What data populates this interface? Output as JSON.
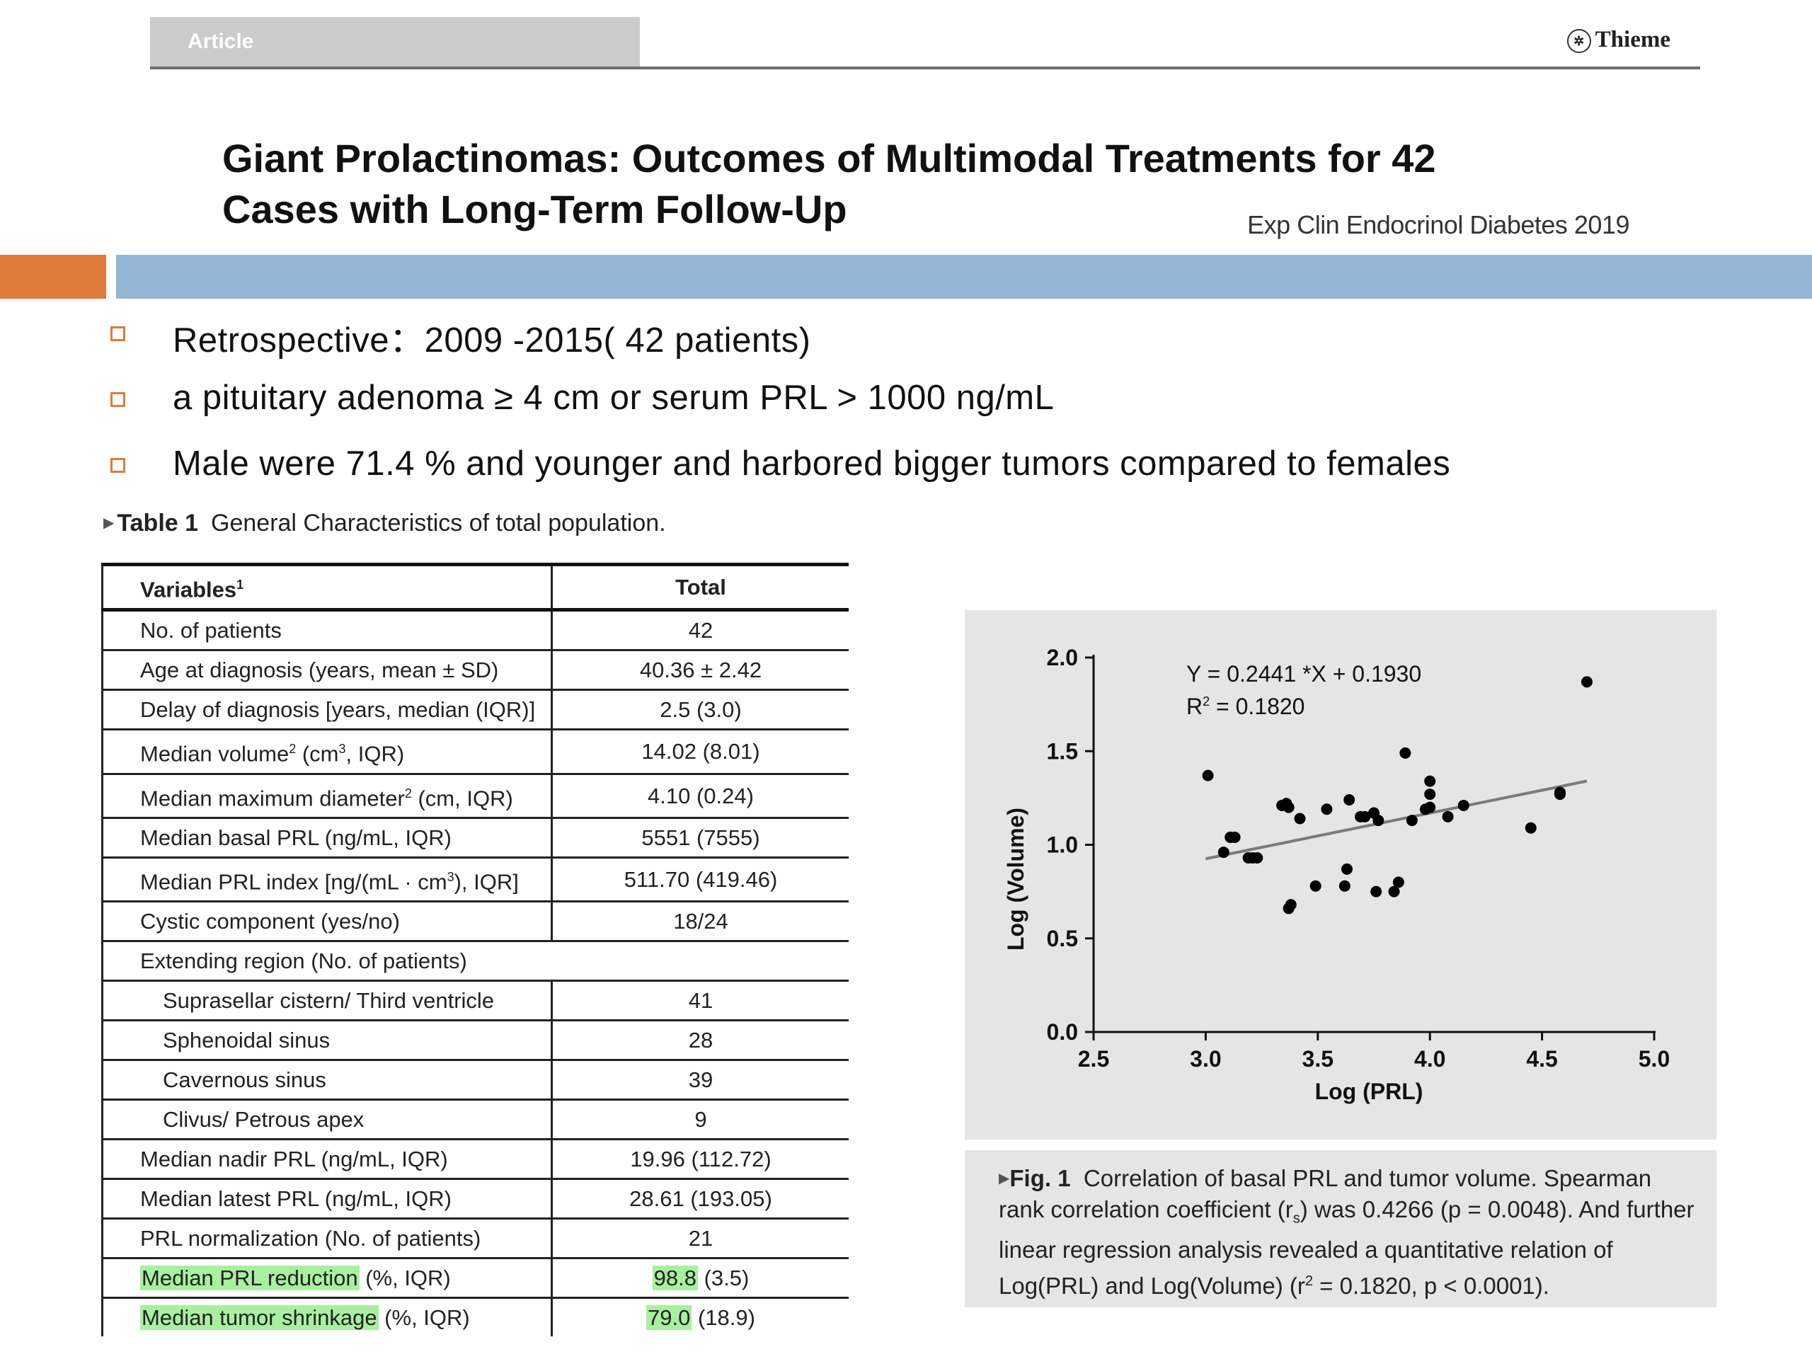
{
  "header": {
    "section_label": "Article",
    "publisher": "Thieme"
  },
  "title": {
    "line1": "Giant Prolactinomas: Outcomes of Multimodal Treatments for 42",
    "line2": "Cases with Long-Term Follow-Up",
    "journal": "Exp Clin Endocrinol Diabetes 2019"
  },
  "bullets": [
    "Retrospective：2009 -2015( 42 patients)",
    "a pituitary adenoma ≥ 4 cm or serum  PRL > 1000 ng/mL",
    "Male were 71.4 % and younger and harbored bigger tumors compared to females"
  ],
  "table": {
    "label": "Table 1",
    "caption": "General Characteristics of total population.",
    "header_variables": "Variables",
    "header_variables_sup": "1",
    "header_total": "Total",
    "rows": [
      {
        "label": "No. of patients",
        "value": "42"
      },
      {
        "label": "Age at diagnosis (years, mean ± SD)",
        "value": "40.36 ± 2.42"
      },
      {
        "label": "Delay of diagnosis [years, median (IQR)]",
        "value": "2.5 (3.0)"
      },
      {
        "label_a": "Median volume",
        "sup_a": "2",
        "label_b": " (cm",
        "sup_b": "3",
        "label_c": ", IQR)",
        "value": "14.02 (8.01)"
      },
      {
        "label_a": "Median maximum diameter",
        "sup_a": "2",
        "label_b": " (cm, IQR)",
        "value": "4.10 (0.24)"
      },
      {
        "label": "Median basal PRL (ng/mL, IQR)",
        "value": "5551 (7555)"
      },
      {
        "label_a": "Median PRL index [ng/(mL · cm",
        "sup_a": "3",
        "label_b": "), IQR]",
        "value": "511.70 (419.46)"
      },
      {
        "label": "Cystic component (yes/no)",
        "value": "18/24"
      },
      {
        "label": "Extending region (No. of patients)",
        "value": ""
      },
      {
        "label": "Suprasellar cistern/ Third ventricle",
        "value": "41"
      },
      {
        "label": "Sphenoidal sinus",
        "value": "28"
      },
      {
        "label": "Cavernous sinus",
        "value": "39"
      },
      {
        "label": "Clivus/ Petrous apex",
        "value": "9"
      },
      {
        "label": "Median nadir PRL (ng/mL, IQR)",
        "value": "19.96 (112.72)"
      },
      {
        "label": "Median latest PRL (ng/mL, IQR)",
        "value": "28.61 (193.05)"
      },
      {
        "label": "PRL normalization (No. of patients)",
        "value": "21"
      },
      {
        "label_hl": "Median PRL reduction",
        "label_rest": " (%, IQR)",
        "value_hl": "98.8",
        "value_rest": " (3.5)"
      },
      {
        "label_hl": "Median tumor shrinkage",
        "label_rest": " (%, IQR)",
        "value_hl": "79.0",
        "value_rest": " (18.9)"
      }
    ]
  },
  "figure": {
    "label": "Fig. 1",
    "caption_a": "Correlation of basal PRL and tumor volume. Spearman rank correlation coefficient (r",
    "caption_sub": "s",
    "caption_b": ") was 0.4266 (p = 0.0048). And further linear regression analysis revealed a quantitative relation of Log(PRL) and Log(Volume) (r",
    "caption_sup": "2",
    "caption_c": " = 0.1820, p < 0.0001).",
    "equation": "Y = 0.2441 *X + 0.1930",
    "r2_prefix": "R",
    "r2_sup": "2",
    "r2_value": " = 0.1820"
  },
  "chart_data": {
    "type": "scatter",
    "xlabel": "Log (PRL)",
    "ylabel": "Log (Volume)",
    "xlim": [
      2.5,
      5.0
    ],
    "ylim": [
      0.0,
      2.0
    ],
    "xticks": [
      "2.5",
      "3.0",
      "3.5",
      "4.0",
      "4.5",
      "5.0"
    ],
    "yticks": [
      "0.0",
      "0.5",
      "1.0",
      "1.5",
      "2.0"
    ],
    "grid": false,
    "points": [
      [
        3.01,
        1.37
      ],
      [
        3.08,
        0.96
      ],
      [
        3.11,
        1.04
      ],
      [
        3.13,
        1.04
      ],
      [
        3.19,
        0.93
      ],
      [
        3.21,
        0.93
      ],
      [
        3.23,
        0.93
      ],
      [
        3.34,
        1.21
      ],
      [
        3.36,
        1.22
      ],
      [
        3.37,
        1.2
      ],
      [
        3.37,
        0.66
      ],
      [
        3.38,
        0.68
      ],
      [
        3.42,
        1.14
      ],
      [
        3.49,
        0.78
      ],
      [
        3.54,
        1.19
      ],
      [
        3.62,
        0.78
      ],
      [
        3.63,
        0.87
      ],
      [
        3.64,
        1.24
      ],
      [
        3.69,
        1.15
      ],
      [
        3.71,
        1.15
      ],
      [
        3.75,
        1.17
      ],
      [
        3.76,
        0.75
      ],
      [
        3.77,
        1.13
      ],
      [
        3.84,
        0.75
      ],
      [
        3.86,
        0.8
      ],
      [
        3.89,
        1.49
      ],
      [
        3.92,
        1.13
      ],
      [
        3.98,
        1.19
      ],
      [
        4.0,
        1.2
      ],
      [
        4.0,
        1.27
      ],
      [
        4.0,
        1.34
      ],
      [
        4.08,
        1.15
      ],
      [
        4.15,
        1.21
      ],
      [
        4.45,
        1.09
      ],
      [
        4.58,
        1.27
      ],
      [
        4.58,
        1.28
      ],
      [
        4.7,
        1.87
      ]
    ],
    "fit_line": {
      "slope": 0.2441,
      "intercept": 0.193,
      "x_range": [
        3.0,
        4.7
      ]
    }
  }
}
